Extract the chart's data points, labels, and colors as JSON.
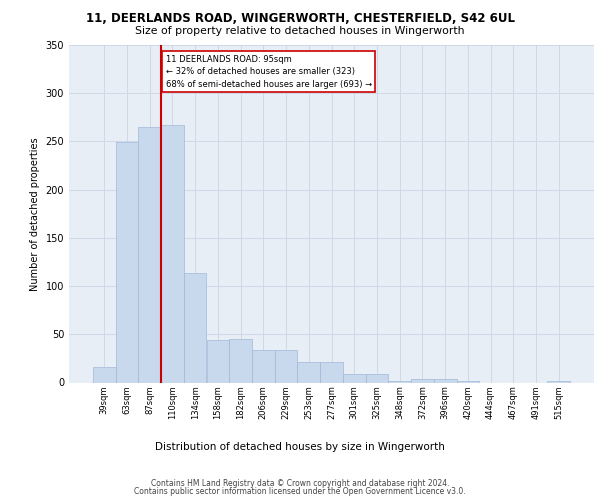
{
  "title_line1": "11, DEERLANDS ROAD, WINGERWORTH, CHESTERFIELD, S42 6UL",
  "title_line2": "Size of property relative to detached houses in Wingerworth",
  "xlabel": "Distribution of detached houses by size in Wingerworth",
  "ylabel": "Number of detached properties",
  "footer_line1": "Contains HM Land Registry data © Crown copyright and database right 2024.",
  "footer_line2": "Contains public sector information licensed under the Open Government Licence v3.0.",
  "annotation_line1": "11 DEERLANDS ROAD: 95sqm",
  "annotation_line2": "← 32% of detached houses are smaller (323)",
  "annotation_line3": "68% of semi-detached houses are larger (693) →",
  "bar_color": "#c9d9ed",
  "bar_edge_color": "#a0b8d8",
  "vline_color": "#cc0000",
  "annotation_box_edge": "#cc0000",
  "annotation_box_face": "#ffffff",
  "categories": [
    "39sqm",
    "63sqm",
    "87sqm",
    "110sqm",
    "134sqm",
    "158sqm",
    "182sqm",
    "206sqm",
    "229sqm",
    "253sqm",
    "277sqm",
    "301sqm",
    "325sqm",
    "348sqm",
    "372sqm",
    "396sqm",
    "420sqm",
    "444sqm",
    "467sqm",
    "491sqm",
    "515sqm"
  ],
  "values": [
    16,
    249,
    265,
    267,
    114,
    44,
    45,
    34,
    34,
    21,
    21,
    9,
    9,
    2,
    4,
    4,
    2,
    0,
    0,
    0,
    2
  ],
  "ylim": [
    0,
    350
  ],
  "yticks": [
    0,
    50,
    100,
    150,
    200,
    250,
    300,
    350
  ],
  "vline_x": 2.5,
  "grid_color": "#d0d8e8",
  "bg_color": "#e8eef6"
}
